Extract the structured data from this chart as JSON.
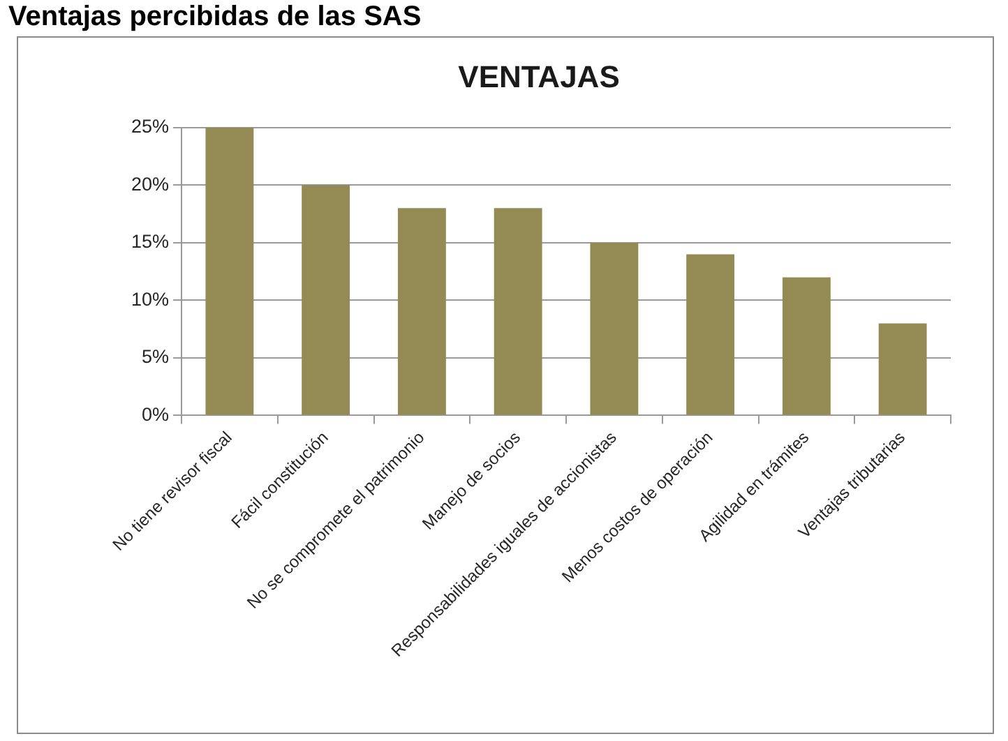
{
  "chart_data": {
    "type": "bar",
    "title": "Ventajas percibidas de las SAS",
    "subtitle": "VENTAJAS",
    "categories": [
      "No tiene revisor fiscal",
      "Fácil constitución",
      "No se compromete el patrimonio",
      "Manejo de socios",
      "Responsabilidades iguales de accionistas",
      "Menos costos de operación",
      "Agilidad en trámites",
      "Ventajas tributarias"
    ],
    "values": [
      25,
      20,
      18,
      18,
      15,
      14,
      12,
      8
    ],
    "color": "#948a54",
    "ylim": [
      0,
      25
    ],
    "yticks": [
      {
        "value": 0,
        "label": "0%"
      },
      {
        "value": 5,
        "label": "5%"
      },
      {
        "value": 10,
        "label": "10%"
      },
      {
        "value": 15,
        "label": "15%"
      },
      {
        "value": 20,
        "label": "20%"
      },
      {
        "value": 25,
        "label": "25%"
      }
    ],
    "grid": "y"
  }
}
